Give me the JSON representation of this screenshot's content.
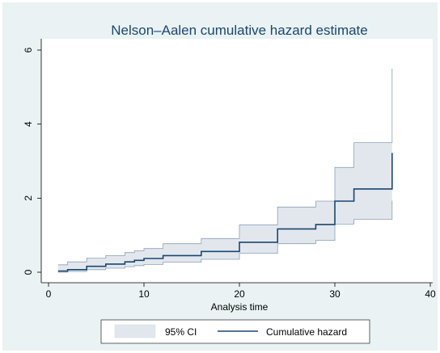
{
  "chart_data": {
    "type": "line",
    "title": "Nelson–Aalen cumulative hazard estimate",
    "xlabel": "Analysis time",
    "ylabel": "",
    "xlim": [
      0,
      40
    ],
    "ylim": [
      0,
      6
    ],
    "x_ticks": [
      0,
      10,
      20,
      30,
      40
    ],
    "y_ticks": [
      0,
      2,
      4,
      6
    ],
    "step": true,
    "grid": false,
    "legend_position": "bottom",
    "series": [
      {
        "name": "Cumulative hazard",
        "kind": "step-line",
        "color": "#1a476f",
        "x": [
          1,
          2,
          4,
          6,
          8,
          9,
          10,
          12,
          16,
          20,
          24,
          28,
          30,
          32,
          36,
          36
        ],
        "y": [
          0.03,
          0.07,
          0.16,
          0.22,
          0.28,
          0.32,
          0.37,
          0.45,
          0.56,
          0.81,
          1.17,
          1.29,
          1.92,
          2.25,
          2.25,
          3.22
        ]
      },
      {
        "name": "95% CI",
        "kind": "band",
        "color": "#e2e7ee",
        "edge_color": "#8da0b8",
        "x": [
          1,
          2,
          4,
          6,
          8,
          9,
          10,
          12,
          16,
          20,
          24,
          28,
          30,
          32,
          36,
          36
        ],
        "lower": [
          0.0,
          0.02,
          0.07,
          0.11,
          0.15,
          0.18,
          0.21,
          0.27,
          0.35,
          0.51,
          0.77,
          0.86,
          1.3,
          1.43,
          1.43,
          1.93
        ],
        "upper": [
          0.2,
          0.28,
          0.38,
          0.45,
          0.53,
          0.58,
          0.64,
          0.77,
          0.91,
          1.28,
          1.76,
          1.92,
          2.83,
          3.5,
          3.5,
          5.5
        ]
      }
    ]
  },
  "colors": {
    "outer_background": "#eaf2f3",
    "plot_background": "#ffffff",
    "title": "#1a476f",
    "axis": "#000000"
  }
}
